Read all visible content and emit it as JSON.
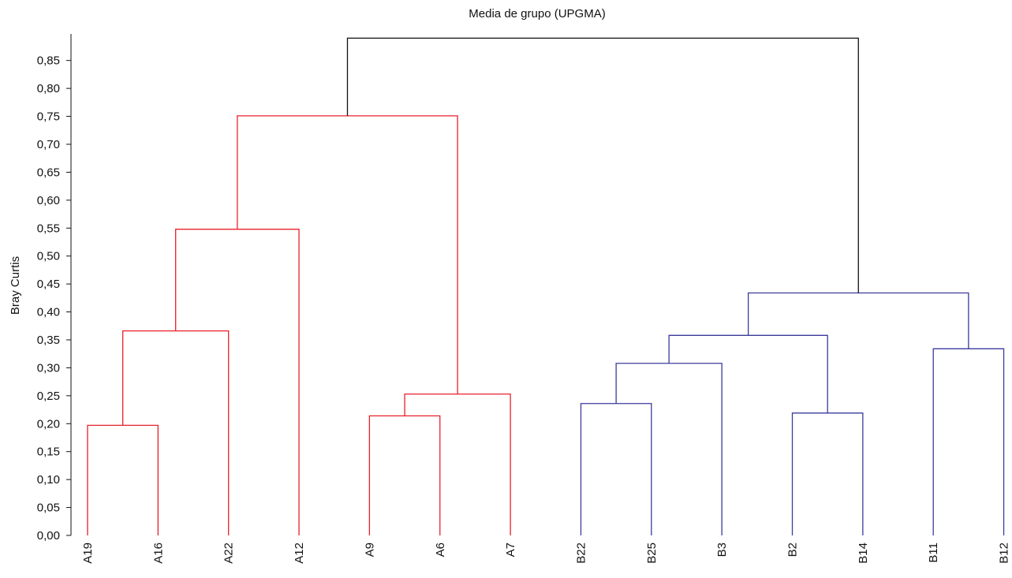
{
  "chart_data": {
    "type": "dendrogram",
    "title": "Media de grupo (UPGMA)",
    "xlabel": "",
    "ylabel": "Bray Curtis",
    "ylim": [
      0,
      0.9
    ],
    "yticks": [
      "0,00",
      "0,05",
      "0,10",
      "0,15",
      "0,20",
      "0,25",
      "0,30",
      "0,35",
      "0,40",
      "0,45",
      "0,50",
      "0,55",
      "0,60",
      "0,65",
      "0,70",
      "0,75",
      "0,80",
      "0,85"
    ],
    "leaves": [
      "A19",
      "A16",
      "A22",
      "A12",
      "A9",
      "A6",
      "A7",
      "B22",
      "B25",
      "B3",
      "B2",
      "B14",
      "B11",
      "B12"
    ],
    "merges": [
      {
        "id": "m1",
        "left": "A19",
        "right": "A16",
        "height": 0.197,
        "color": "#e8212b"
      },
      {
        "id": "m2",
        "left": "m1",
        "right": "A22",
        "height": 0.366,
        "color": "#e8212b"
      },
      {
        "id": "m3",
        "left": "m2",
        "right": "A12",
        "height": 0.548,
        "color": "#e8212b"
      },
      {
        "id": "m4",
        "left": "A9",
        "right": "A6",
        "height": 0.214,
        "color": "#e8212b"
      },
      {
        "id": "m5",
        "left": "m4",
        "right": "A7",
        "height": 0.253,
        "color": "#e8212b"
      },
      {
        "id": "m6",
        "left": "m3",
        "right": "m5",
        "height": 0.751,
        "color": "#e8212b"
      },
      {
        "id": "m7",
        "left": "B22",
        "right": "B25",
        "height": 0.236,
        "color": "#3b3b9c"
      },
      {
        "id": "m8",
        "left": "m7",
        "right": "B3",
        "height": 0.308,
        "color": "#3b3b9c"
      },
      {
        "id": "m9",
        "left": "B2",
        "right": "B14",
        "height": 0.219,
        "color": "#3b3b9c"
      },
      {
        "id": "m10",
        "left": "m8",
        "right": "m9",
        "height": 0.358,
        "color": "#3b3b9c"
      },
      {
        "id": "m11",
        "left": "B11",
        "right": "B12",
        "height": 0.334,
        "color": "#3b3b9c"
      },
      {
        "id": "m12",
        "left": "m10",
        "right": "m11",
        "height": 0.434,
        "color": "#3b3b9c"
      },
      {
        "id": "m13",
        "left": "m6",
        "right": "m12",
        "height": 0.89,
        "color": "#111111"
      }
    ],
    "grid": false,
    "legend": "none"
  }
}
